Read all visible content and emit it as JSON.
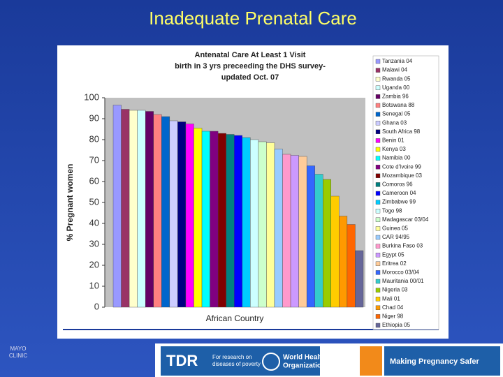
{
  "slide_title": "Inadequate Prenatal Care",
  "chart_data": {
    "type": "bar",
    "title": [
      "Antenatal Care At Least 1 Visit",
      "birth in 3 yrs preceeding the DHS survey-",
      "updated Oct. 07"
    ],
    "y_label": "% Pregnant women",
    "x_label": "African Country",
    "categories": [
      "Tanzania 04",
      "Malawi 04",
      "Rwanda 05",
      "Uganda 00",
      "Zambia 96",
      "Botswana 88",
      "Senegal 05",
      "Ghana 03",
      "South Africa 98",
      "Benin 01",
      "Kenya 03",
      "Namibia 00",
      "Cote d'Ivoire 99",
      "Mozambique 03",
      "Comoros 96",
      "Cameroon 04",
      "Zimbabwe 99",
      "Togo 98",
      "Madagascar 03/04",
      "Guinea 05",
      "CAR 94/95",
      "Burkina Faso 03",
      "Egypt 05",
      "Eritrea 02",
      "Morocco 03/04",
      "Mauritania 00/01",
      "Nigeria 03",
      "Mali 01",
      "Chad 04",
      "Niger 98",
      "Ethiopia 05"
    ],
    "values": [
      96.5,
      94.5,
      94,
      94,
      93.5,
      92,
      91,
      89,
      88.5,
      87.5,
      85.5,
      84,
      84,
      83,
      82.5,
      82,
      81,
      80,
      79,
      78.5,
      75.5,
      73,
      72.5,
      72,
      67.5,
      63.5,
      61,
      53,
      43.5,
      39.5,
      27
    ],
    "colors": [
      "#9999ff",
      "#993366",
      "#ffffcc",
      "#ccffff",
      "#660066",
      "#ff8080",
      "#0066cc",
      "#ccccff",
      "#000080",
      "#ff00ff",
      "#ffff00",
      "#00ffff",
      "#800080",
      "#800000",
      "#008080",
      "#0000ff",
      "#00ccff",
      "#ccffff",
      "#ccffcc",
      "#ffff99",
      "#99ccff",
      "#ff99cc",
      "#cc99ff",
      "#ffcc99",
      "#3366ff",
      "#33cccc",
      "#99cc00",
      "#ffcc00",
      "#ff9900",
      "#ff6600",
      "#666699"
    ],
    "ylim": [
      0,
      100
    ],
    "yticks": [
      0,
      10,
      20,
      30,
      40,
      50,
      60,
      70,
      80,
      90,
      100
    ],
    "grid": false,
    "legend": "right"
  },
  "footer": {
    "logo_left": [
      "MAYO",
      "CLINIC"
    ],
    "tdr": "TDR",
    "tdr_text": [
      "For research on",
      "diseases of poverty"
    ],
    "who": [
      "World Health",
      "Organization"
    ],
    "mps": "Making Pregnancy Safer"
  }
}
